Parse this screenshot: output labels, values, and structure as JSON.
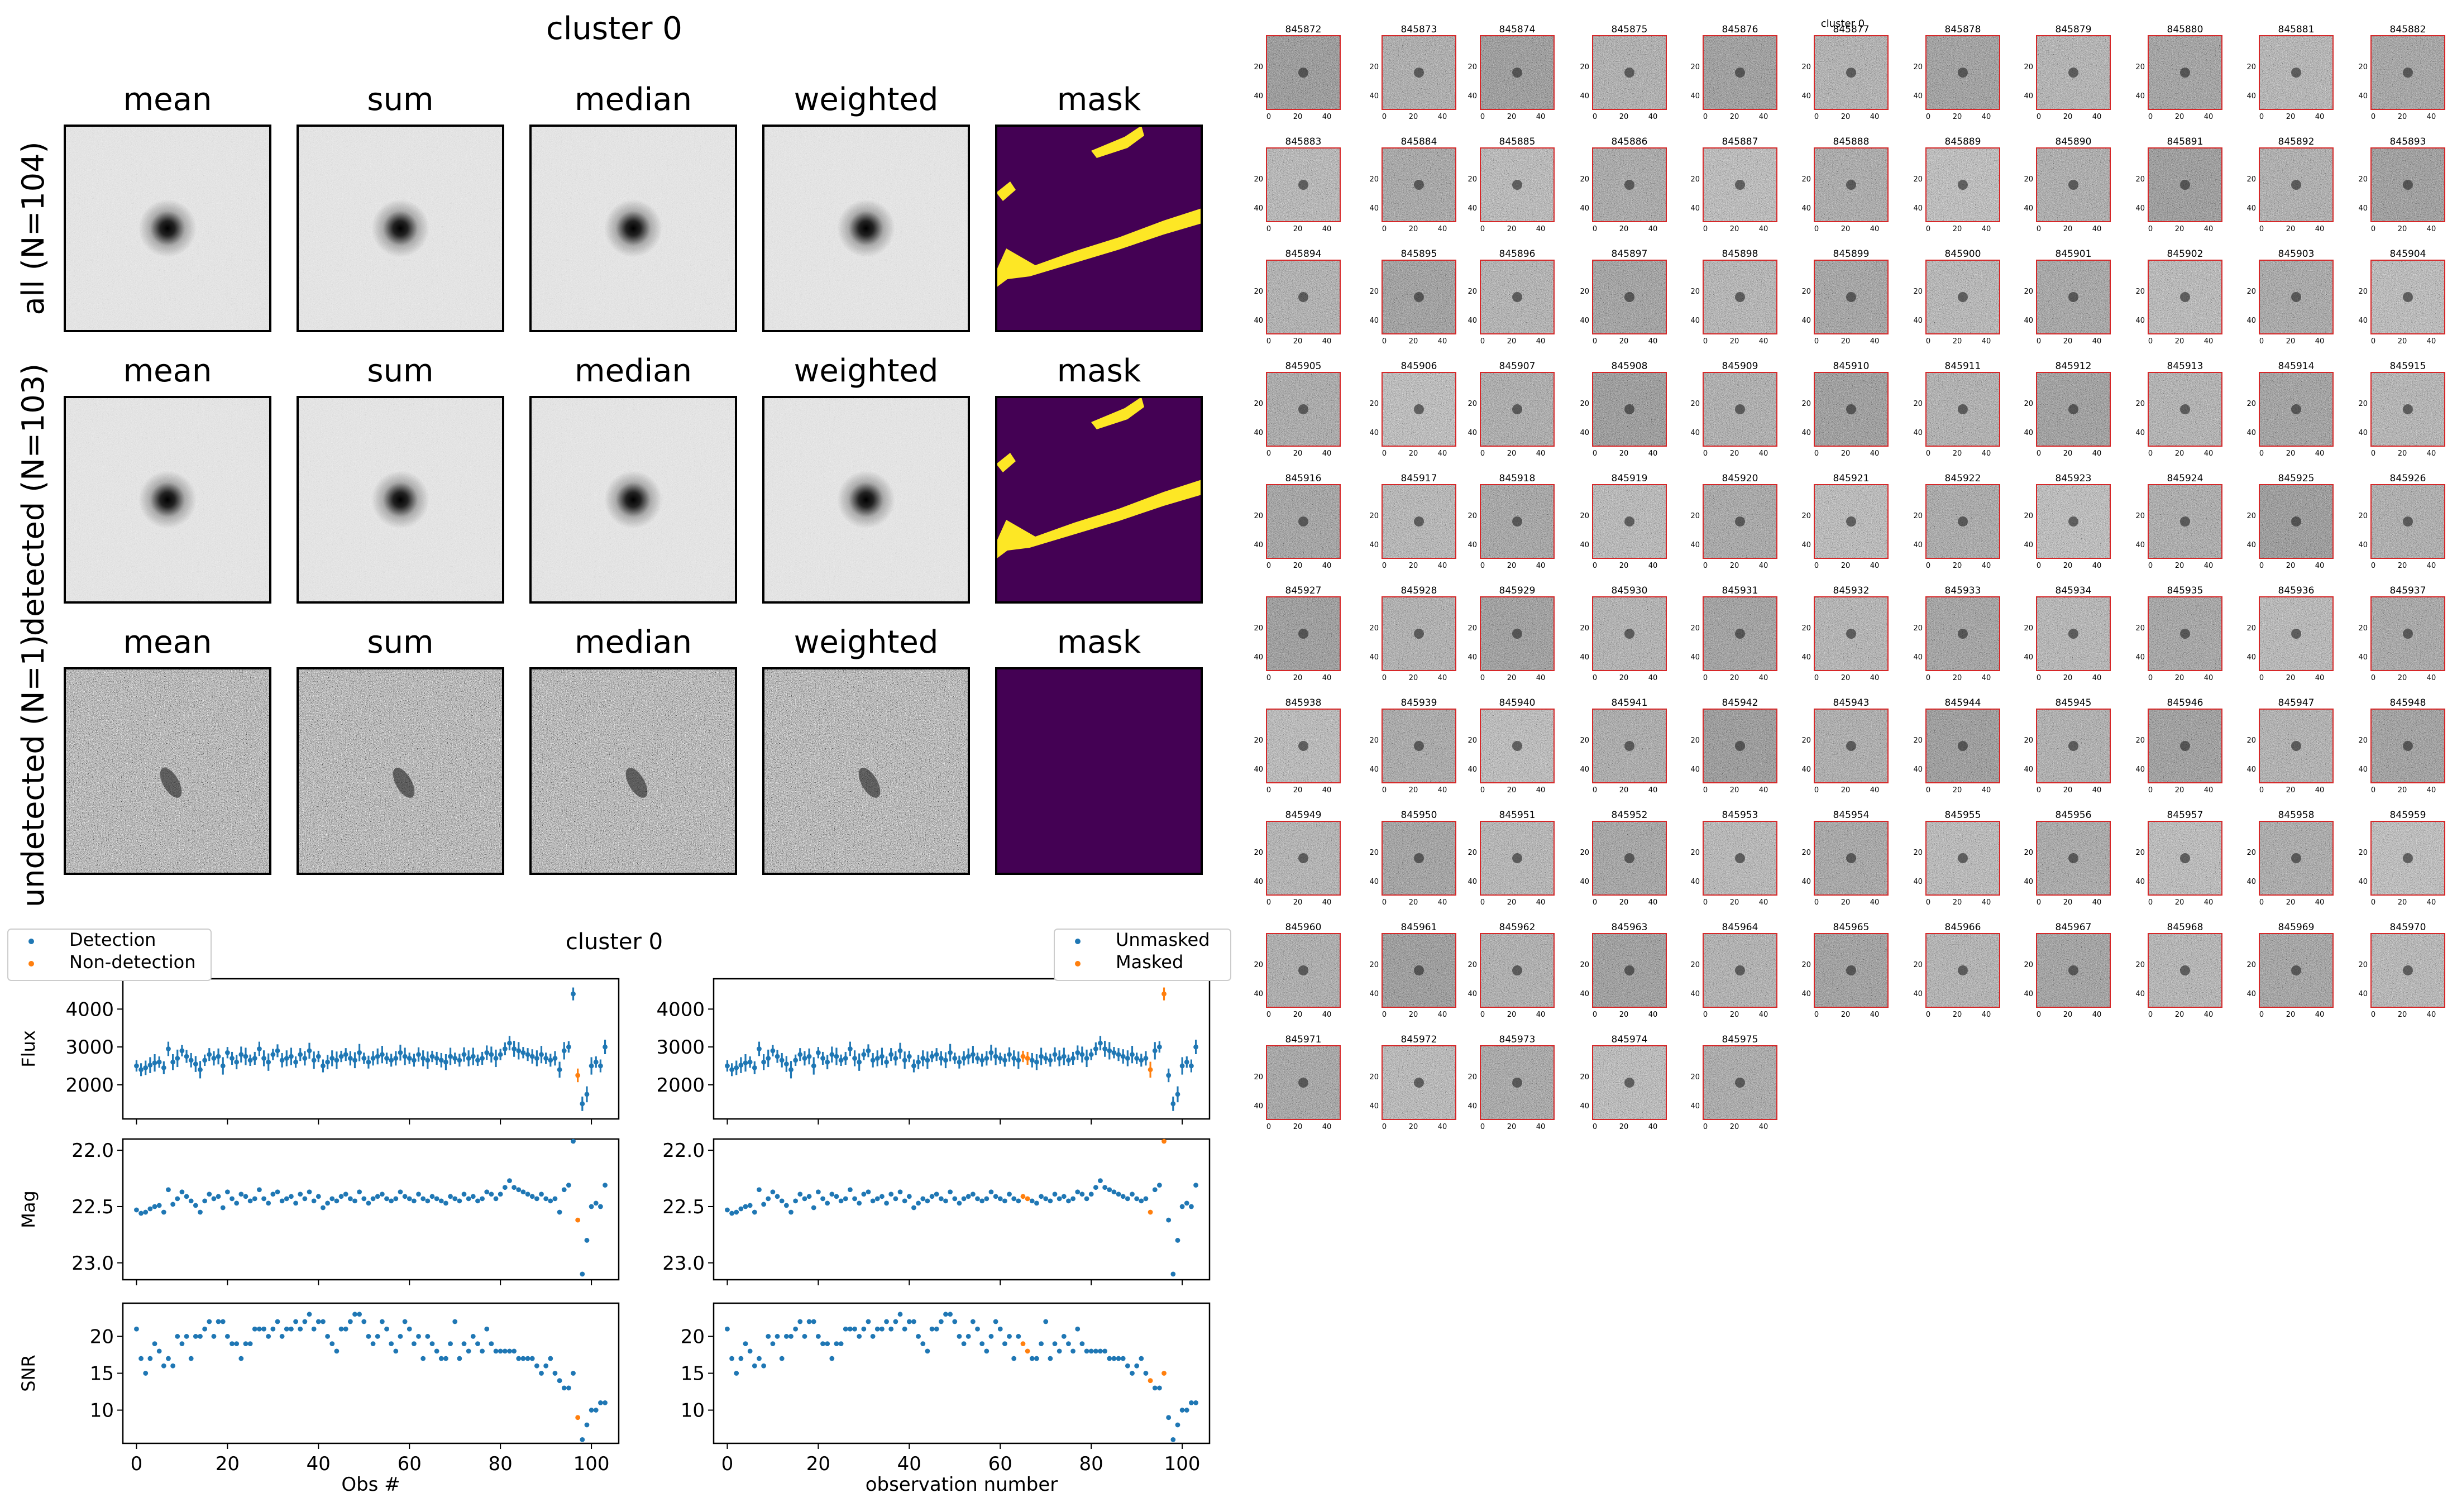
{
  "stamps_figure": {
    "title": "cluster 0",
    "column_titles": [
      "mean",
      "sum",
      "median",
      "weighted",
      "mask"
    ],
    "row_labels": [
      "all (N=104)",
      "detected (N=103)",
      "undetected (N=1)"
    ],
    "colors": {
      "mask_background": "#440154",
      "mask_foreground": "#fde725",
      "frame": "#000000"
    }
  },
  "lightcurve_figure": {
    "title": "cluster 0",
    "left_legend": [
      "Detection",
      "Non-detection"
    ],
    "right_legend": [
      "Unmasked",
      "Masked"
    ],
    "ylabels": [
      "Flux",
      "Mag",
      "SNR"
    ],
    "left_xlabel": "Obs #",
    "right_xlabel": "observation number",
    "colors": {
      "primary": "#1f77b4",
      "secondary": "#ff7f0e"
    }
  },
  "thumbnail_grid": {
    "title": "cluster 0",
    "ids": [
      "845872",
      "845873",
      "845874",
      "845875",
      "845876",
      "845877",
      "845878",
      "845879",
      "845880",
      "845881",
      "845882",
      "845883",
      "845884",
      "845885",
      "845886",
      "845887",
      "845888",
      "845889",
      "845890",
      "845891",
      "845892",
      "845893",
      "845894",
      "845895",
      "845896",
      "845897",
      "845898",
      "845899",
      "845900",
      "845901",
      "845902",
      "845903",
      "845904",
      "845905",
      "845906",
      "845907",
      "845908",
      "845909",
      "845910",
      "845911",
      "845912",
      "845913",
      "845914",
      "845915",
      "845916",
      "845917",
      "845918",
      "845919",
      "845920",
      "845921",
      "845922",
      "845923",
      "845924",
      "845925",
      "845926",
      "845927",
      "845928",
      "845929",
      "845930",
      "845931",
      "845932",
      "845933",
      "845934",
      "845935",
      "845936",
      "845937",
      "845938",
      "845939",
      "845940",
      "845941",
      "845942",
      "845943",
      "845944",
      "845945",
      "845946",
      "845947",
      "845948",
      "845949",
      "845950",
      "845951",
      "845952",
      "845953",
      "845954",
      "845955",
      "845956",
      "845957",
      "845958",
      "845959",
      "845960",
      "845961",
      "845962",
      "845963",
      "845964",
      "845965",
      "845966",
      "845967",
      "845968",
      "845969",
      "845970",
      "845971",
      "845972",
      "845973",
      "845974",
      "845975"
    ],
    "x_ticks": [
      "0",
      "20",
      "40"
    ],
    "y_ticks": [
      "0",
      "20",
      "40"
    ],
    "frame_color": "#d62728"
  },
  "chart_data": [
    {
      "type": "scatter",
      "panel": "flux",
      "ylabel": "Flux",
      "ylim": [
        1100,
        4800
      ],
      "yticks": [
        2000,
        3000,
        4000
      ],
      "xlim": [
        -3,
        106
      ],
      "xticks": [
        0,
        20,
        40,
        60,
        80,
        100
      ],
      "errorbars": true,
      "series": [
        {
          "name": "Detection",
          "color": "#1f77b4",
          "x": [
            0,
            1,
            2,
            3,
            4,
            5,
            6,
            7,
            8,
            9,
            10,
            11,
            12,
            13,
            14,
            15,
            16,
            17,
            18,
            19,
            20,
            21,
            22,
            23,
            24,
            25,
            26,
            27,
            28,
            29,
            30,
            31,
            32,
            33,
            34,
            35,
            36,
            37,
            38,
            39,
            40,
            41,
            42,
            43,
            44,
            45,
            46,
            47,
            48,
            49,
            50,
            51,
            52,
            53,
            54,
            55,
            56,
            57,
            58,
            59,
            60,
            61,
            62,
            63,
            64,
            65,
            66,
            67,
            68,
            69,
            70,
            71,
            72,
            73,
            74,
            75,
            76,
            77,
            78,
            79,
            80,
            81,
            82,
            83,
            84,
            85,
            86,
            87,
            88,
            89,
            90,
            91,
            92,
            93,
            94,
            95,
            96,
            98,
            99,
            100,
            101,
            102,
            103
          ],
          "y": [
            2500,
            2400,
            2450,
            2520,
            2580,
            2600,
            2450,
            2950,
            2600,
            2700,
            2900,
            2750,
            2650,
            2550,
            2400,
            2650,
            2800,
            2700,
            2750,
            2500,
            2850,
            2700,
            2600,
            2800,
            2750,
            2650,
            2700,
            2950,
            2700,
            2600,
            2800,
            2900,
            2650,
            2700,
            2750,
            2600,
            2800,
            2700,
            2900,
            2650,
            2750,
            2500,
            2600,
            2700,
            2650,
            2750,
            2800,
            2700,
            2650,
            2850,
            2700,
            2600,
            2700,
            2750,
            2800,
            2700,
            2650,
            2700,
            2850,
            2750,
            2700,
            2650,
            2800,
            2700,
            2650,
            2750,
            2700,
            2650,
            2600,
            2750,
            2700,
            2650,
            2800,
            2700,
            2750,
            2650,
            2700,
            2850,
            2800,
            2700,
            2800,
            2950,
            3100,
            2950,
            2900,
            2850,
            2800,
            2750,
            2700,
            2800,
            2700,
            2650,
            2700,
            2400,
            2900,
            3000,
            4400,
            1500,
            1750,
            2500,
            2600,
            2500,
            3000
          ]
        },
        {
          "name": "Non-detection",
          "color": "#ff7f0e",
          "x": [
            97
          ],
          "y": [
            2250
          ]
        }
      ]
    },
    {
      "type": "scatter",
      "panel": "mag",
      "ylabel": "Mag",
      "ylim": [
        23.15,
        21.9
      ],
      "yticks": [
        22.0,
        22.5,
        23.0
      ],
      "xlim": [
        -3,
        106
      ],
      "xticks": [
        0,
        20,
        40,
        60,
        80,
        100
      ],
      "series": [
        {
          "name": "Detection",
          "color": "#1f77b4",
          "x": [
            0,
            1,
            2,
            3,
            4,
            5,
            6,
            7,
            8,
            9,
            10,
            11,
            12,
            13,
            14,
            15,
            16,
            17,
            18,
            19,
            20,
            21,
            22,
            23,
            24,
            25,
            26,
            27,
            28,
            29,
            30,
            31,
            32,
            33,
            34,
            35,
            36,
            37,
            38,
            39,
            40,
            41,
            42,
            43,
            44,
            45,
            46,
            47,
            48,
            49,
            50,
            51,
            52,
            53,
            54,
            55,
            56,
            57,
            58,
            59,
            60,
            61,
            62,
            63,
            64,
            65,
            66,
            67,
            68,
            69,
            70,
            71,
            72,
            73,
            74,
            75,
            76,
            77,
            78,
            79,
            80,
            81,
            82,
            83,
            84,
            85,
            86,
            87,
            88,
            89,
            90,
            91,
            92,
            93,
            94,
            95,
            96,
            98,
            99,
            100,
            101,
            102,
            103
          ],
          "y": [
            22.53,
            22.56,
            22.55,
            22.52,
            22.5,
            22.49,
            22.55,
            22.35,
            22.48,
            22.43,
            22.37,
            22.41,
            22.45,
            22.49,
            22.55,
            22.45,
            22.39,
            22.43,
            22.41,
            22.51,
            22.37,
            22.43,
            22.47,
            22.39,
            22.41,
            22.45,
            22.43,
            22.35,
            22.43,
            22.47,
            22.39,
            22.37,
            22.45,
            22.43,
            22.41,
            22.47,
            22.39,
            22.43,
            22.37,
            22.45,
            22.41,
            22.51,
            22.47,
            22.43,
            22.45,
            22.41,
            22.39,
            22.43,
            22.45,
            22.37,
            22.43,
            22.47,
            22.43,
            22.41,
            22.39,
            22.43,
            22.45,
            22.43,
            22.37,
            22.41,
            22.43,
            22.45,
            22.39,
            22.43,
            22.45,
            22.41,
            22.43,
            22.45,
            22.47,
            22.41,
            22.43,
            22.45,
            22.39,
            22.43,
            22.41,
            22.45,
            22.43,
            22.37,
            22.39,
            22.43,
            22.39,
            22.33,
            22.27,
            22.33,
            22.35,
            22.37,
            22.39,
            22.41,
            22.43,
            22.39,
            22.43,
            22.45,
            22.43,
            22.55,
            22.35,
            22.31,
            21.92,
            23.1,
            22.8,
            22.5,
            22.47,
            22.5,
            22.31
          ]
        },
        {
          "name": "Non-detection",
          "color": "#ff7f0e",
          "x": [
            97
          ],
          "y": [
            22.62
          ]
        }
      ]
    },
    {
      "type": "scatter",
      "panel": "snr",
      "ylabel": "SNR",
      "xlabel": "Obs #",
      "ylim": [
        5.5,
        24.5
      ],
      "yticks": [
        10,
        15,
        20
      ],
      "xlim": [
        -3,
        106
      ],
      "xticks": [
        0,
        20,
        40,
        60,
        80,
        100
      ],
      "series": [
        {
          "name": "Detection",
          "color": "#1f77b4",
          "x": [
            0,
            1,
            2,
            3,
            4,
            5,
            6,
            7,
            8,
            9,
            10,
            11,
            12,
            13,
            14,
            15,
            16,
            17,
            18,
            19,
            20,
            21,
            22,
            23,
            24,
            25,
            26,
            27,
            28,
            29,
            30,
            31,
            32,
            33,
            34,
            35,
            36,
            37,
            38,
            39,
            40,
            41,
            42,
            43,
            44,
            45,
            46,
            47,
            48,
            49,
            50,
            51,
            52,
            53,
            54,
            55,
            56,
            57,
            58,
            59,
            60,
            61,
            62,
            63,
            64,
            65,
            66,
            67,
            68,
            69,
            70,
            71,
            72,
            73,
            74,
            75,
            76,
            77,
            78,
            79,
            80,
            81,
            82,
            83,
            84,
            85,
            86,
            87,
            88,
            89,
            90,
            91,
            92,
            93,
            94,
            95,
            96,
            98,
            99,
            100,
            101,
            102,
            103
          ],
          "y": [
            21,
            17,
            15,
            17,
            19,
            18,
            16,
            17,
            16,
            20,
            19,
            20,
            17,
            20,
            20,
            21,
            22,
            20,
            22,
            22,
            20,
            19,
            19,
            17,
            19,
            19,
            21,
            21,
            21,
            20,
            21,
            22,
            20,
            21,
            21,
            22,
            21,
            22,
            23,
            21,
            22,
            22,
            20,
            19,
            18,
            21,
            21,
            22,
            23,
            23,
            22,
            20,
            19,
            20,
            22,
            21,
            19,
            18,
            20,
            22,
            21,
            19,
            20,
            17,
            20,
            19,
            18,
            17,
            17,
            19,
            22,
            17,
            19,
            18,
            20,
            19,
            18,
            21,
            19,
            18,
            18,
            18,
            18,
            18,
            17,
            17,
            17,
            17,
            16,
            15,
            16,
            17,
            15,
            14,
            13,
            13,
            15,
            6,
            8,
            10,
            10,
            11,
            11
          ]
        },
        {
          "name": "Non-detection",
          "color": "#ff7f0e",
          "x": [
            97
          ],
          "y": [
            9
          ]
        }
      ]
    }
  ]
}
